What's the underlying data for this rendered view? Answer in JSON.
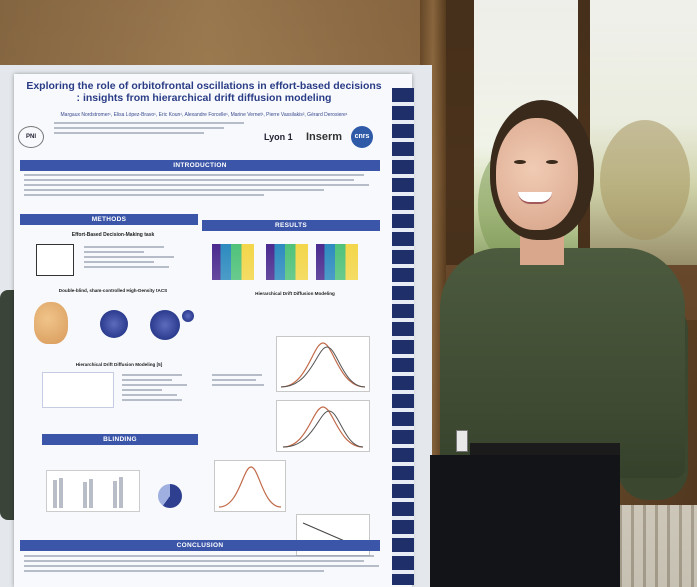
{
  "poster": {
    "title": "Exploring the role of orbitofrontal oscillations in effort-based decisions : insights from hierarchical drift diffusion modeling",
    "authors": "Margaux Nordstromer¹, Elisa López-Bravo¹, Eric Koun¹, Alexandre Forcelle¹, Marine Vernet¹, Pierre Vassilakis², Gérard Derosiere¹",
    "logos": {
      "lyon": "Lyon 1",
      "inserm": "Inserm",
      "cnrs": "cnrs"
    },
    "sections": {
      "introduction": "INTRODUCTION",
      "methods": "METHODS",
      "results": "RESULTS",
      "blinding": "BLINDING",
      "conclusion": "CONCLUSION"
    },
    "subheadings": {
      "effort_task": "Effort-Based Decision-Making task",
      "double_blind": "Double-blind, sham-controlled High-Density tACS",
      "hddm_methods": "Hierarchical Drift Diffusion Modeling [5]",
      "hddm_results": "Hierarchical Drift Diffusion Modeling"
    }
  },
  "colors": {
    "poster_accent": "#3b56a8",
    "title_color": "#2a3c86",
    "sweater": "#4c5a3e"
  },
  "icons": {
    "pni_logo": "pni-logo",
    "cnrs_logo": "cnrs-logo"
  }
}
